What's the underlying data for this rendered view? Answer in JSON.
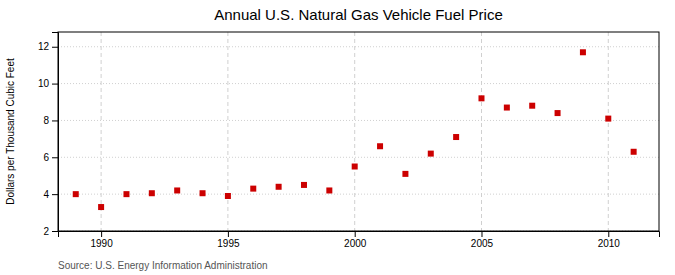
{
  "chart_data": {
    "type": "scatter",
    "title": "Annual U.S. Natural Gas Vehicle Fuel Price",
    "y_label": "Dollars per Thousand Cubic Feet",
    "source": "Source: U.S. Energy Information Administration",
    "x": [
      1989,
      1990,
      1991,
      1992,
      1993,
      1994,
      1995,
      1996,
      1997,
      1998,
      1999,
      2000,
      2001,
      2002,
      2003,
      2004,
      2005,
      2006,
      2007,
      2008,
      2009,
      2010,
      2011
    ],
    "values": [
      4.0,
      3.3,
      4.0,
      4.05,
      4.2,
      4.05,
      3.9,
      4.3,
      4.4,
      4.5,
      4.2,
      5.5,
      6.6,
      5.1,
      6.2,
      7.1,
      9.2,
      8.7,
      8.8,
      8.4,
      11.7,
      8.1,
      6.3
    ],
    "color": "#cc0000",
    "marker": "square",
    "xlim": [
      1988.3,
      2012.0
    ],
    "ylim": [
      2,
      12.8
    ],
    "xticks": [
      1990,
      1995,
      2000,
      2005,
      2010
    ],
    "yticks": [
      2,
      4,
      6,
      8,
      10,
      12
    ],
    "grid": true
  }
}
